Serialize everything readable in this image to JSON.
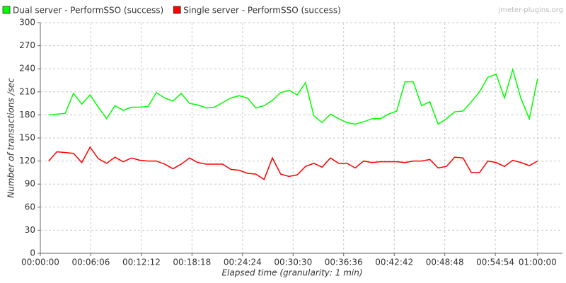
{
  "chart_data": {
    "type": "line",
    "watermark": "jmeter-plugins.org",
    "x_label": "Elapsed time (granularity: 1 min)",
    "y_label": "Number of transactions /sec",
    "x": [
      60,
      120,
      180,
      240,
      300,
      360,
      420,
      480,
      540,
      600,
      660,
      720,
      780,
      840,
      900,
      960,
      1020,
      1080,
      1140,
      1200,
      1260,
      1320,
      1380,
      1440,
      1500,
      1560,
      1620,
      1680,
      1740,
      1800,
      1860,
      1920,
      1980,
      2040,
      2100,
      2160,
      2220,
      2280,
      2340,
      2400,
      2460,
      2520,
      2580,
      2640,
      2700,
      2760,
      2820,
      2880,
      2940,
      3000,
      3060,
      3120,
      3180,
      3240,
      3300,
      3360,
      3420,
      3480,
      3540,
      3600
    ],
    "series": [
      {
        "name": "Dual server - PerformSSO (success)",
        "color": "#00ff00",
        "values": [
          180,
          181,
          182,
          208,
          194,
          206,
          190,
          175,
          192,
          186,
          190,
          190,
          191,
          209,
          202,
          198,
          208,
          195,
          193,
          189,
          190,
          196,
          202,
          205,
          202,
          189,
          192,
          199,
          209,
          212,
          206,
          222,
          179,
          170,
          181,
          175,
          170,
          168,
          171,
          175,
          175,
          181,
          185,
          223,
          223,
          192,
          197,
          168,
          175,
          184,
          185,
          197,
          210,
          229,
          233,
          202,
          239,
          201,
          175,
          227
        ]
      },
      {
        "name": "Single server - PerformSSO (success)",
        "color": "#ff0000",
        "values": [
          120,
          132,
          131,
          130,
          118,
          138,
          123,
          117,
          125,
          119,
          124,
          121,
          120,
          120,
          116,
          110,
          116,
          124,
          118,
          116,
          116,
          116,
          109,
          108,
          104,
          103,
          96,
          124,
          103,
          100,
          102,
          113,
          117,
          112,
          124,
          117,
          117,
          111,
          120,
          118,
          119,
          119,
          119,
          118,
          120,
          120,
          122,
          111,
          113,
          125,
          124,
          105,
          105,
          120,
          118,
          113,
          121,
          118,
          114,
          120
        ]
      }
    ],
    "xlim": [
      0,
      3780
    ],
    "xticks": [
      {
        "value": 0,
        "label": "00:00:00"
      },
      {
        "value": 366,
        "label": "00:06:06"
      },
      {
        "value": 732,
        "label": "00:12:12"
      },
      {
        "value": 1098,
        "label": "00:18:18"
      },
      {
        "value": 1464,
        "label": "00:24:24"
      },
      {
        "value": 1830,
        "label": "00:30:30"
      },
      {
        "value": 2196,
        "label": "00:36:36"
      },
      {
        "value": 2562,
        "label": "00:42:42"
      },
      {
        "value": 2928,
        "label": "00:48:48"
      },
      {
        "value": 3294,
        "label": "00:54:54"
      },
      {
        "value": 3600,
        "label": "01:00:00"
      }
    ],
    "ylim": [
      0,
      300
    ],
    "yticks": [
      0,
      30,
      60,
      90,
      120,
      150,
      180,
      210,
      240,
      270,
      300
    ],
    "grid": true
  }
}
